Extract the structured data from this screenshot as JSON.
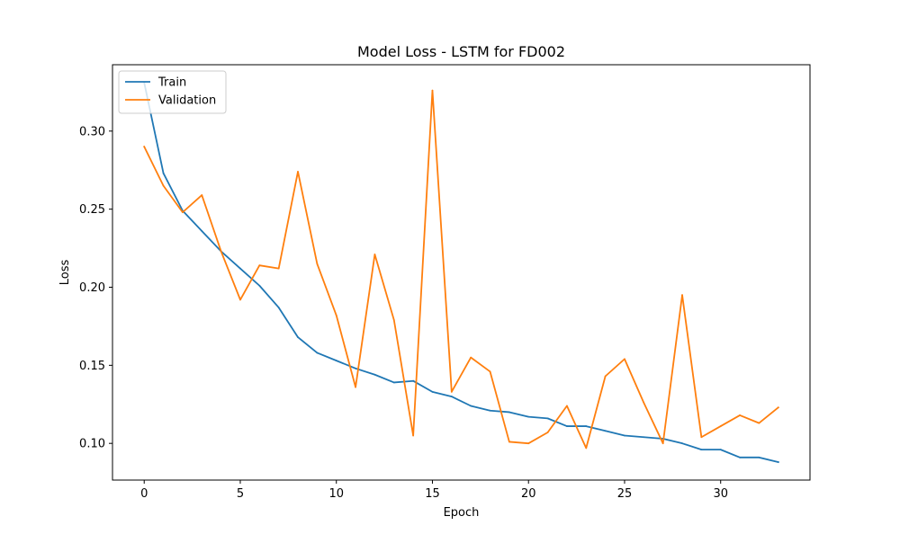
{
  "chart_data": {
    "type": "line",
    "title": "Model Loss - LSTM for FD002",
    "xlabel": "Epoch",
    "ylabel": "Loss",
    "xlim": [
      -1.65,
      34.65
    ],
    "ylim": [
      0.0765,
      0.3425
    ],
    "x_ticks": [
      0,
      5,
      10,
      15,
      20,
      25,
      30
    ],
    "x_tick_labels": [
      "0",
      "5",
      "10",
      "15",
      "20",
      "25",
      "30"
    ],
    "y_ticks": [
      0.1,
      0.15,
      0.2,
      0.25,
      0.3
    ],
    "y_tick_labels": [
      "0.10",
      "0.15",
      "0.20",
      "0.25",
      "0.30"
    ],
    "grid": false,
    "legend_position": "top-left",
    "x": [
      0,
      1,
      2,
      3,
      4,
      5,
      6,
      7,
      8,
      9,
      10,
      11,
      12,
      13,
      14,
      15,
      16,
      17,
      18,
      19,
      20,
      21,
      22,
      23,
      24,
      25,
      26,
      27,
      28,
      29,
      30,
      31,
      32,
      33
    ],
    "series": [
      {
        "name": "Train",
        "color": "#1f77b4",
        "values": [
          0.331,
          0.273,
          0.249,
          0.236,
          0.223,
          0.212,
          0.201,
          0.187,
          0.168,
          0.158,
          0.153,
          0.148,
          0.144,
          0.139,
          0.14,
          0.133,
          0.13,
          0.124,
          0.121,
          0.12,
          0.117,
          0.116,
          0.111,
          0.111,
          0.108,
          0.105,
          0.104,
          0.103,
          0.1,
          0.096,
          0.096,
          0.091,
          0.091,
          0.088
        ]
      },
      {
        "name": "Validation",
        "color": "#ff7f0e",
        "values": [
          0.29,
          0.265,
          0.248,
          0.259,
          0.223,
          0.192,
          0.214,
          0.212,
          0.274,
          0.215,
          0.182,
          0.136,
          0.221,
          0.179,
          0.105,
          0.326,
          0.133,
          0.155,
          0.146,
          0.101,
          0.1,
          0.107,
          0.124,
          0.097,
          0.143,
          0.154,
          0.126,
          0.1,
          0.195,
          0.104,
          0.111,
          0.118,
          0.113,
          0.123
        ]
      }
    ]
  }
}
